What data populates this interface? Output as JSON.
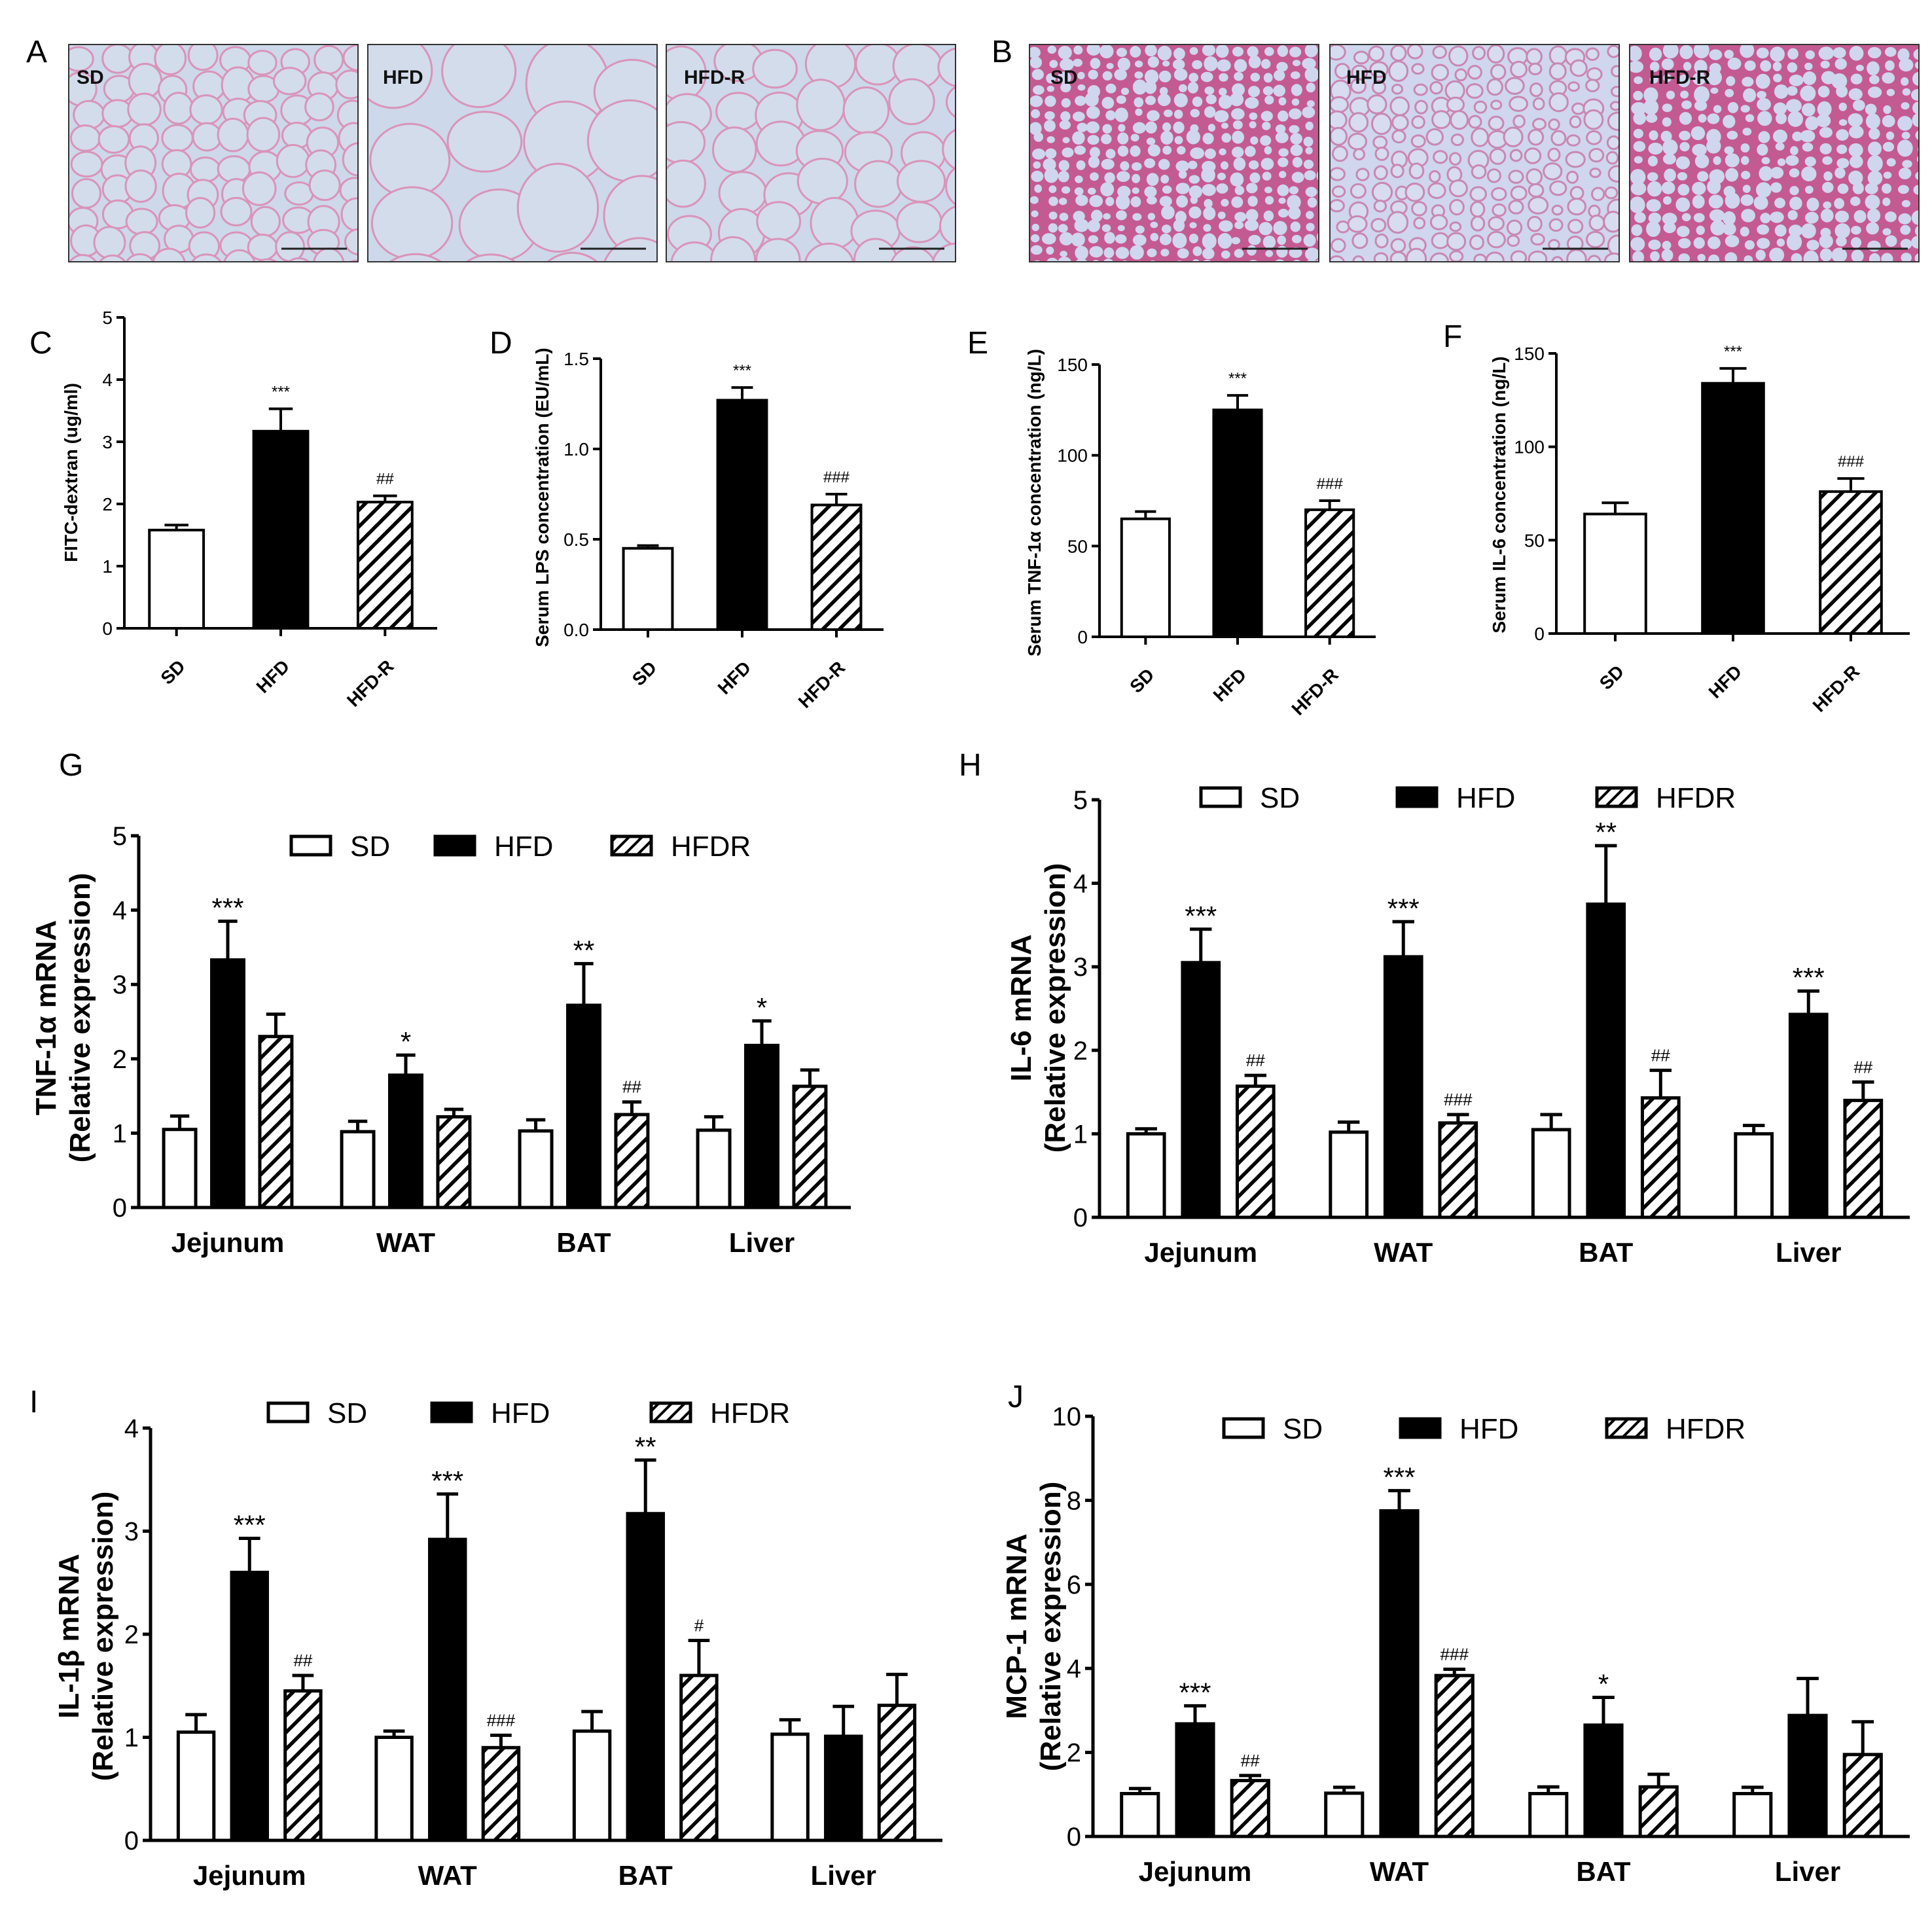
{
  "panels": {
    "A": {
      "letter": "A",
      "images": [
        "SD",
        "HFD",
        "HFD-R"
      ]
    },
    "B": {
      "letter": "B",
      "images": [
        "SD",
        "HFD",
        "HFD-R"
      ]
    }
  },
  "colors": {
    "wat_background": "#cdd8ea",
    "wat_membrane": "#d994b9",
    "bat_background": "#c45a92",
    "bat_droplet": "#cfd6ee",
    "bar_outline": "#000000",
    "hfd_fill": "#000000",
    "sd_fill": "#ffffff"
  },
  "chart_data": [
    {
      "panel": "C",
      "type": "bar",
      "categories": [
        "SD",
        "HFD",
        "HFD-R"
      ],
      "ylabel": "FITC-dextran (ug/ml)",
      "ylim": [
        0,
        5
      ],
      "yticks": [
        "0",
        "1",
        "2",
        "3",
        "4",
        "5"
      ],
      "values": [
        1.58,
        3.17,
        2.03
      ],
      "errors": [
        0.08,
        0.36,
        0.1
      ],
      "annotations": [
        "",
        "***",
        "##"
      ],
      "fills": [
        "white",
        "black",
        "hatch"
      ]
    },
    {
      "panel": "D",
      "type": "bar",
      "categories": [
        "SD",
        "HFD",
        "HFD-R"
      ],
      "ylabel": "Serum LPS concentration (EU/mL)",
      "ylim": [
        0,
        1.5
      ],
      "yticks": [
        "0.0",
        "0.5",
        "1.0",
        "1.5"
      ],
      "values": [
        0.45,
        1.27,
        0.69
      ],
      "errors": [
        0.015,
        0.07,
        0.06
      ],
      "annotations": [
        "",
        "***",
        "###"
      ],
      "fills": [
        "white",
        "black",
        "hatch"
      ]
    },
    {
      "panel": "E",
      "type": "bar",
      "categories": [
        "SD",
        "HFD",
        "HFD-R"
      ],
      "ylabel": "Serum TNF-1α concentration (ng/L)",
      "ylim": [
        0,
        150
      ],
      "yticks": [
        "0",
        "50",
        "100",
        "150"
      ],
      "values": [
        65,
        125,
        70
      ],
      "errors": [
        4,
        8,
        5
      ],
      "annotations": [
        "",
        "***",
        "###"
      ],
      "fills": [
        "white",
        "black",
        "hatch"
      ]
    },
    {
      "panel": "F",
      "type": "bar",
      "categories": [
        "SD",
        "HFD",
        "HFD-R"
      ],
      "ylabel": "Serum IL-6 concentration (ng/L)",
      "ylim": [
        0,
        150
      ],
      "yticks": [
        "0",
        "50",
        "100",
        "150"
      ],
      "values": [
        64,
        134,
        76
      ],
      "errors": [
        6,
        8,
        7
      ],
      "annotations": [
        "",
        "***",
        "###"
      ],
      "fills": [
        "white",
        "black",
        "hatch"
      ]
    },
    {
      "panel": "G",
      "type": "bar",
      "categories": [
        "Jejunum",
        "WAT",
        "BAT",
        "Liver"
      ],
      "ylabel_line1": "TNF-1α mRNA",
      "ylabel_line2": "(Relative expression)",
      "ylim": [
        0,
        5
      ],
      "yticks": [
        "0",
        "1",
        "2",
        "3",
        "4",
        "5"
      ],
      "legend": [
        "SD",
        "HFD",
        "HFDR"
      ],
      "series": [
        {
          "values": [
            1.05,
            1.02,
            1.03,
            1.04
          ],
          "errors": [
            0.18,
            0.14,
            0.15,
            0.18
          ],
          "annotations": [
            "",
            "",
            "",
            ""
          ]
        },
        {
          "values": [
            3.33,
            1.78,
            2.72,
            2.18
          ],
          "errors": [
            0.52,
            0.27,
            0.56,
            0.33
          ],
          "annotations": [
            "***",
            "*",
            "**",
            "*"
          ]
        },
        {
          "values": [
            2.3,
            1.22,
            1.25,
            1.63
          ],
          "errors": [
            0.3,
            0.1,
            0.17,
            0.22
          ],
          "annotations": [
            "",
            "",
            "##",
            ""
          ]
        }
      ]
    },
    {
      "panel": "H",
      "type": "bar",
      "categories": [
        "Jejunum",
        "WAT",
        "BAT",
        "Liver"
      ],
      "ylabel_line1": "IL-6 mRNA",
      "ylabel_line2": "(Relative expression)",
      "ylim": [
        0,
        5
      ],
      "yticks": [
        "0",
        "1",
        "2",
        "3",
        "4",
        "5"
      ],
      "legend": [
        "SD",
        "HFD",
        "HFDR"
      ],
      "series": [
        {
          "values": [
            1.0,
            1.02,
            1.05,
            1.0
          ],
          "errors": [
            0.06,
            0.12,
            0.18,
            0.1
          ],
          "annotations": [
            "",
            "",
            "",
            ""
          ]
        },
        {
          "values": [
            3.05,
            3.12,
            3.75,
            2.43
          ],
          "errors": [
            0.4,
            0.42,
            0.7,
            0.28
          ],
          "annotations": [
            "***",
            "***",
            "**",
            "***"
          ]
        },
        {
          "values": [
            1.57,
            1.13,
            1.43,
            1.4
          ],
          "errors": [
            0.13,
            0.1,
            0.33,
            0.22
          ],
          "annotations": [
            "##",
            "###",
            "##",
            "##"
          ]
        }
      ]
    },
    {
      "panel": "I",
      "type": "bar",
      "categories": [
        "Jejunum",
        "WAT",
        "BAT",
        "Liver"
      ],
      "ylabel_line1": "IL-1β mRNA",
      "ylabel_line2": "(Relative expression)",
      "ylim": [
        0,
        4
      ],
      "yticks": [
        "0",
        "1",
        "2",
        "3",
        "4"
      ],
      "legend": [
        "SD",
        "HFD",
        "HFDR"
      ],
      "series": [
        {
          "values": [
            1.05,
            1.0,
            1.06,
            1.03
          ],
          "errors": [
            0.17,
            0.06,
            0.19,
            0.14
          ],
          "annotations": [
            "",
            "",
            "",
            ""
          ]
        },
        {
          "values": [
            2.6,
            2.92,
            3.17,
            1.01
          ],
          "errors": [
            0.33,
            0.44,
            0.52,
            0.29
          ],
          "annotations": [
            "***",
            "***",
            "**",
            ""
          ]
        },
        {
          "values": [
            1.45,
            0.9,
            1.6,
            1.31
          ],
          "errors": [
            0.15,
            0.12,
            0.34,
            0.3
          ],
          "annotations": [
            "##",
            "###",
            "#",
            ""
          ]
        }
      ]
    },
    {
      "panel": "J",
      "type": "bar",
      "categories": [
        "Jejunum",
        "WAT",
        "BAT",
        "Liver"
      ],
      "ylabel_line1": "MCP-1 mRNA",
      "ylabel_line2": "(Relative expression)",
      "ylim": [
        0,
        10
      ],
      "yticks": [
        "0",
        "2",
        "4",
        "6",
        "8",
        "10"
      ],
      "legend": [
        "SD",
        "HFD",
        "HFDR"
      ],
      "series": [
        {
          "values": [
            1.02,
            1.03,
            1.02,
            1.02
          ],
          "errors": [
            0.12,
            0.14,
            0.16,
            0.15
          ],
          "annotations": [
            "",
            "",
            "",
            ""
          ]
        },
        {
          "values": [
            2.68,
            7.75,
            2.65,
            2.88
          ],
          "errors": [
            0.43,
            0.48,
            0.66,
            0.88
          ],
          "annotations": [
            "***",
            "***",
            "*",
            ""
          ]
        },
        {
          "values": [
            1.33,
            3.83,
            1.18,
            1.95
          ],
          "errors": [
            0.12,
            0.15,
            0.3,
            0.78
          ],
          "annotations": [
            "##",
            "###",
            "",
            ""
          ]
        }
      ]
    }
  ]
}
